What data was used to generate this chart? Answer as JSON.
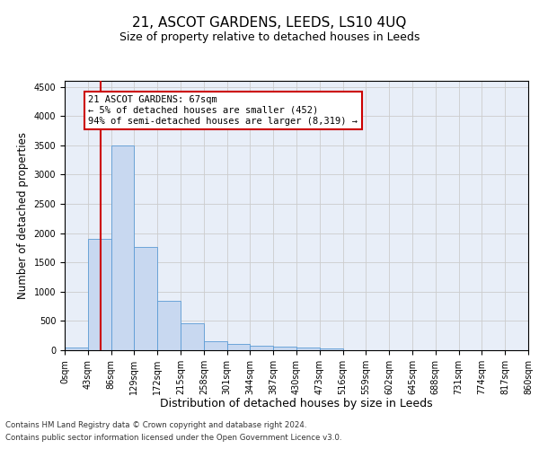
{
  "title": "21, ASCOT GARDENS, LEEDS, LS10 4UQ",
  "subtitle": "Size of property relative to detached houses in Leeds",
  "xlabel": "Distribution of detached houses by size in Leeds",
  "ylabel": "Number of detached properties",
  "bar_color": "#c8d8f0",
  "bar_edge_color": "#5b9bd5",
  "grid_color": "#cccccc",
  "bg_color": "#e8eef8",
  "annotation_box_color": "#cc0000",
  "vline_color": "#cc0000",
  "vline_x": 67,
  "annotation_text": "21 ASCOT GARDENS: 67sqm\n← 5% of detached houses are smaller (452)\n94% of semi-detached houses are larger (8,319) →",
  "footer1": "Contains HM Land Registry data © Crown copyright and database right 2024.",
  "footer2": "Contains public sector information licensed under the Open Government Licence v3.0.",
  "bin_edges": [
    0,
    43,
    86,
    129,
    172,
    215,
    258,
    301,
    344,
    387,
    430,
    473,
    516,
    559,
    602,
    645,
    688,
    731,
    774,
    817,
    860
  ],
  "bar_heights": [
    50,
    1900,
    3500,
    1760,
    840,
    460,
    160,
    100,
    70,
    55,
    45,
    30,
    0,
    0,
    0,
    0,
    0,
    0,
    0,
    0
  ],
  "ylim": [
    0,
    4600
  ],
  "yticks": [
    0,
    500,
    1000,
    1500,
    2000,
    2500,
    3000,
    3500,
    4000,
    4500
  ],
  "title_fontsize": 11,
  "subtitle_fontsize": 9,
  "tick_fontsize": 7,
  "ylabel_fontsize": 8.5,
  "xlabel_fontsize": 9
}
